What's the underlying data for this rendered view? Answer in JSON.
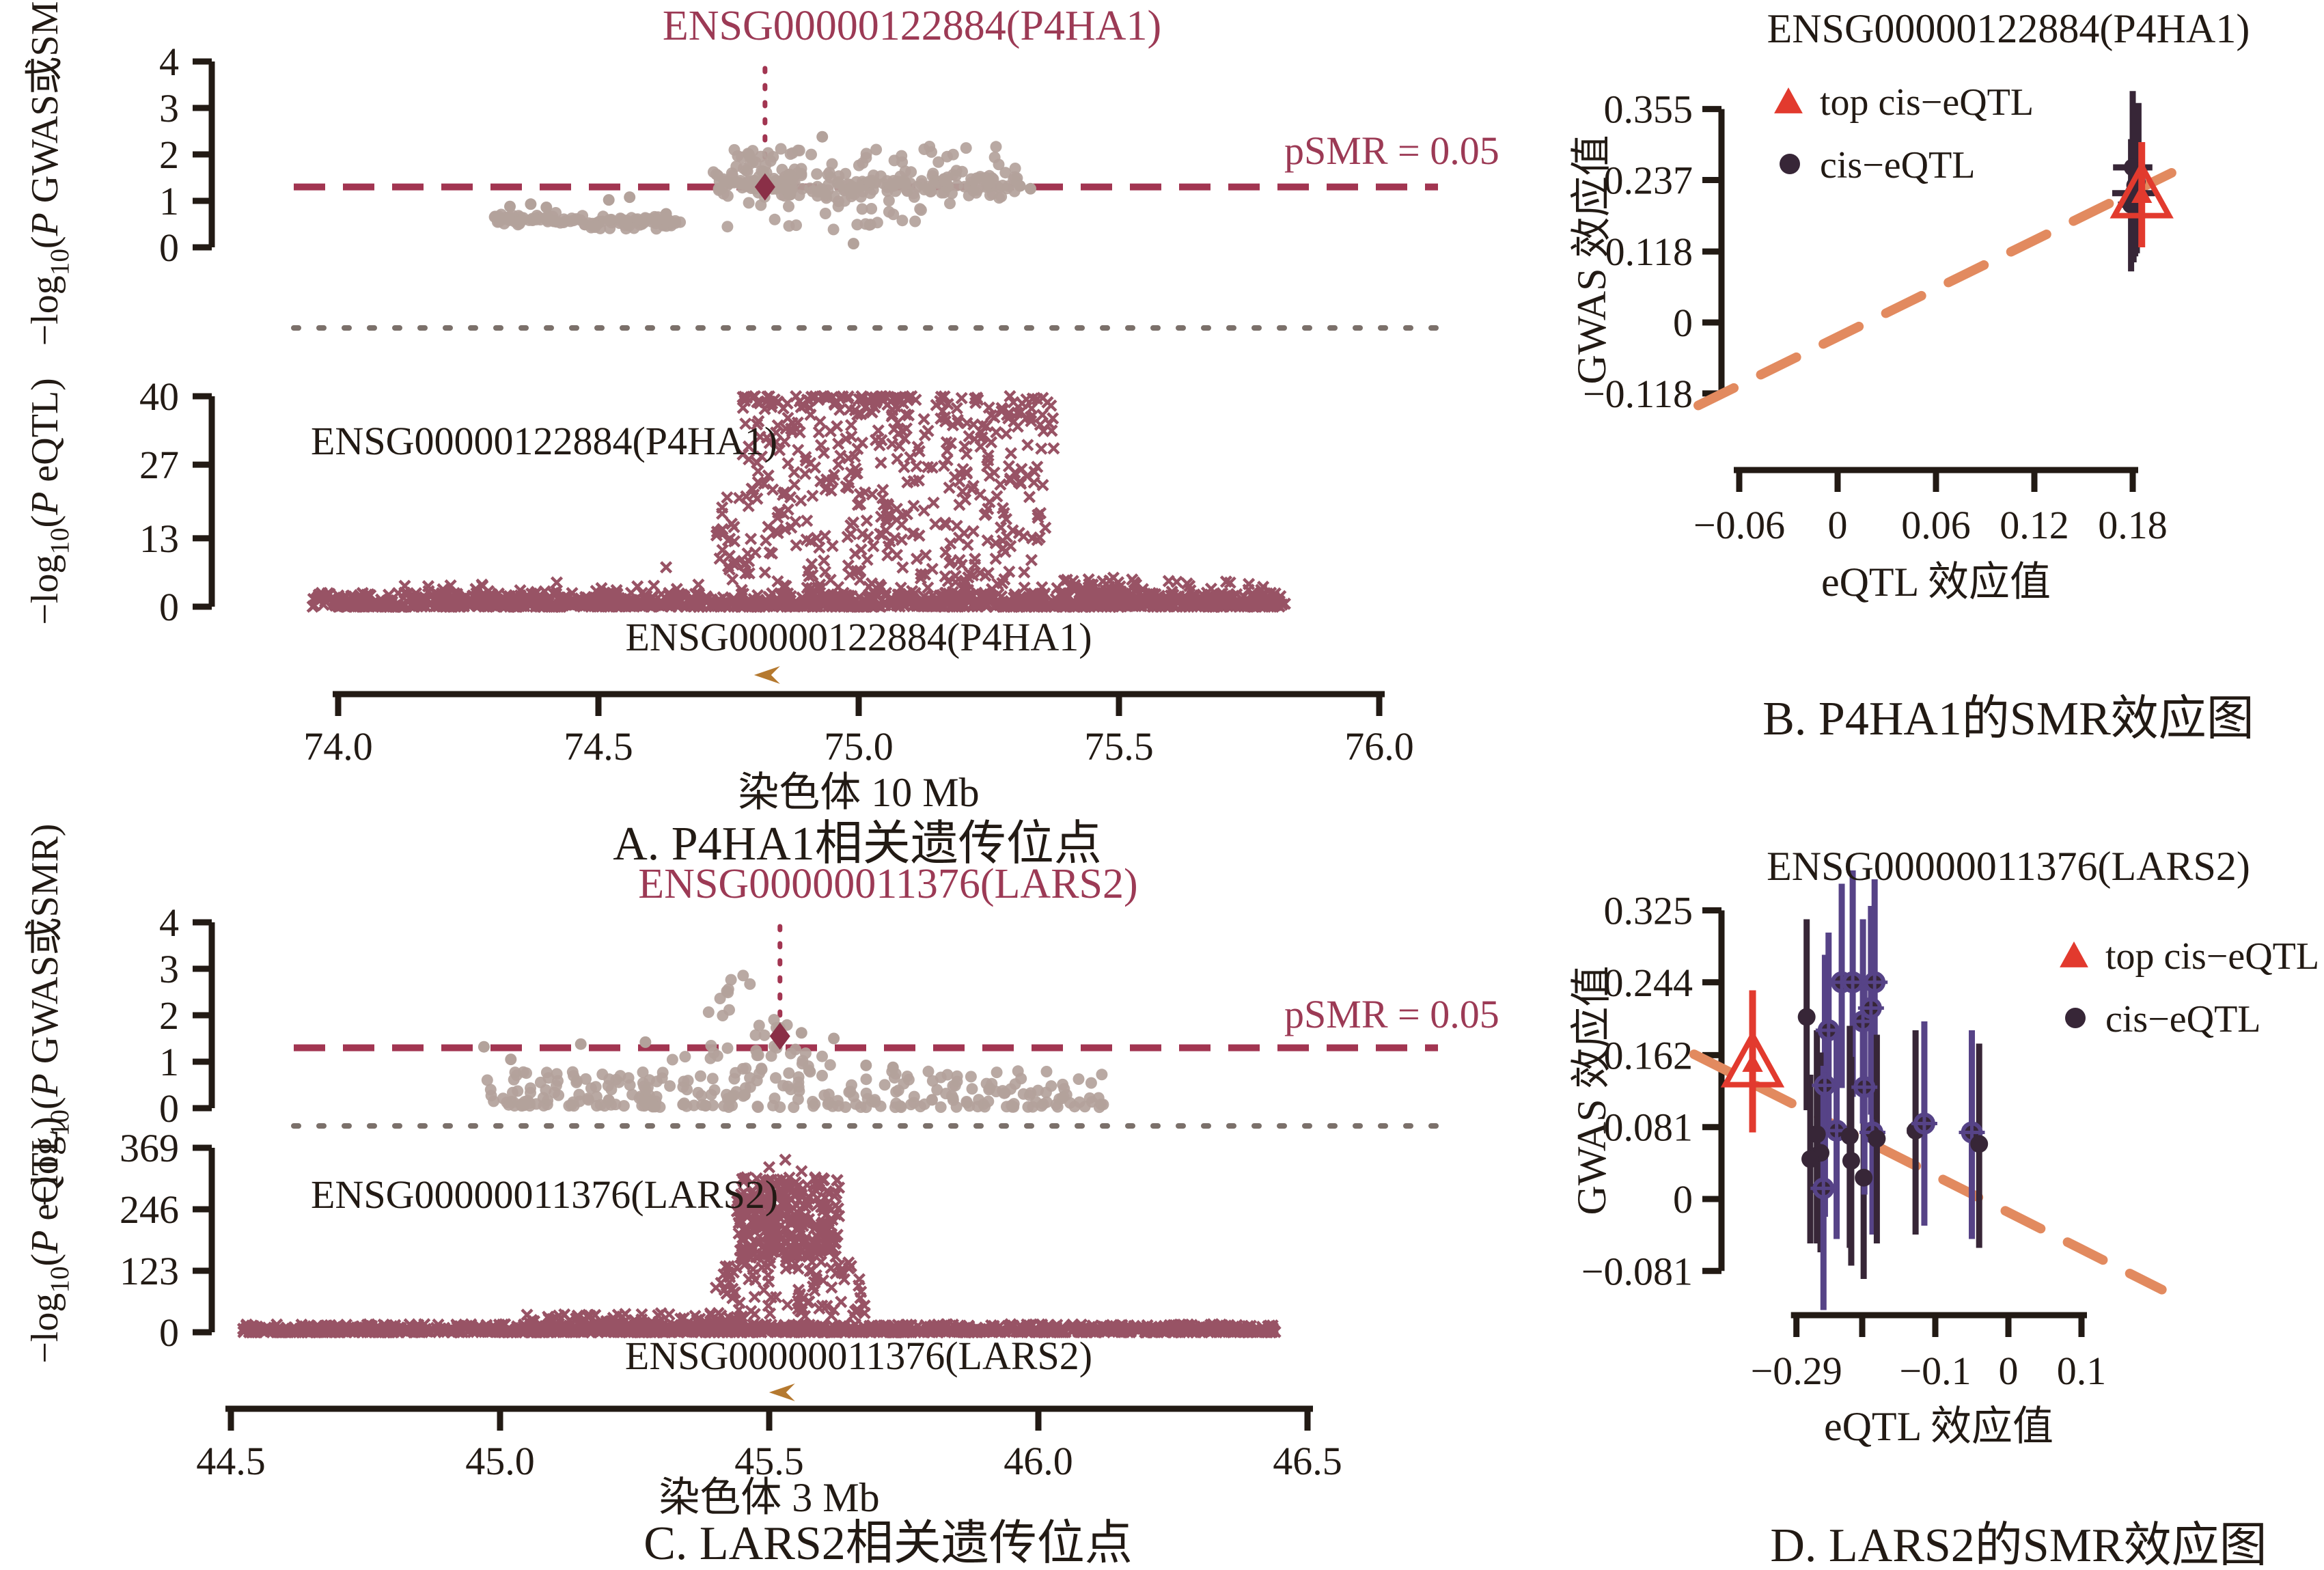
{
  "figure": {
    "background": "#ffffff",
    "colors": {
      "maroon": "#8d4054",
      "maroon_line": "#a23551",
      "maroon_deep": "#8a2f47",
      "maroon_title": "#9c3a55",
      "tan": "#b3a29b",
      "gray_dot": "#7b706a",
      "black": "#221a14",
      "orange": "#e28a5f",
      "red": "#e23a2e",
      "dark_circle": "#372637",
      "purple": "#564387",
      "gold": "#b5792f"
    }
  },
  "chart_data": [
    {
      "id": "A",
      "type": "locus-scatter",
      "gene_title": "ENSG00000122884(P4HA1)",
      "gwas_track": {
        "ylabel_parts": [
          {
            "t": "−log"
          },
          {
            "t": "10",
            "sub": true
          },
          {
            "t": "("
          },
          {
            "t": "P",
            "italic": true
          },
          {
            "t": " GWAS或SMR)"
          }
        ],
        "yticks": [
          4,
          3,
          2,
          1,
          0
        ],
        "ylim": [
          0,
          4
        ],
        "threshold_line": {
          "y": 1.3,
          "label": "pSMR = 0.05"
        },
        "top_snp": {
          "x": 74.82,
          "y": 1.3
        },
        "gene_vline_x": 74.82,
        "clusters": [
          {
            "x": [
              74.3,
              74.47
            ],
            "y": [
              0.45,
              0.76
            ],
            "n": 55,
            "bias": "center"
          },
          {
            "x": [
              74.47,
              74.66
            ],
            "y": [
              0.38,
              0.68
            ],
            "n": 65,
            "bias": "center"
          },
          {
            "x": [
              74.72,
              75.31
            ],
            "y": [
              0.92,
              1.72
            ],
            "n": 215,
            "bias": "center"
          },
          {
            "x": [
              74.76,
              75.28
            ],
            "y": [
              1.7,
              2.18
            ],
            "n": 32
          },
          {
            "x": [
              74.74,
              75.12
            ],
            "y": [
              0.36,
              0.94
            ],
            "n": 22
          },
          {
            "x": [
              74.76,
              74.88
            ],
            "y": [
              1.25,
              2.05
            ],
            "n": 28
          }
        ],
        "points": [
          [
            74.93,
            2.38
          ],
          [
            74.99,
            0.08
          ],
          [
            74.33,
            0.88
          ],
          [
            74.37,
            0.93
          ],
          [
            74.4,
            0.86
          ],
          [
            74.52,
            1.02
          ],
          [
            74.56,
            1.08
          ],
          [
            74.63,
            0.72
          ],
          [
            75.31,
            1.32
          ],
          [
            75.33,
            1.26
          ]
        ]
      },
      "eqtl_track": {
        "ylabel_parts": [
          {
            "t": "−log"
          },
          {
            "t": "10",
            "sub": true
          },
          {
            "t": "("
          },
          {
            "t": "P",
            "italic": true
          },
          {
            "t": " eQTL)"
          }
        ],
        "yticks": [
          40,
          27,
          13,
          0
        ],
        "ylim": [
          0,
          40
        ],
        "gene_label": "ENSG00000122884(P4HA1)",
        "clusters": [
          {
            "x": [
              73.95,
              75.82
            ],
            "y": [
              0,
              2.6
            ],
            "n": 1150,
            "bias": "bottom"
          },
          {
            "x": [
              74.0,
              75.8
            ],
            "y": [
              2.6,
              5
            ],
            "n": 70,
            "bias": "bottom"
          },
          {
            "x": [
              74.72,
              74.79
            ],
            "y": [
              5,
              21
            ],
            "n": 30
          },
          {
            "x": [
              74.77,
              75.38
            ],
            "y": [
              26,
              40
            ],
            "n": 240,
            "bias": "top"
          },
          {
            "x": [
              74.79,
              75.36
            ],
            "y": [
              9,
              26
            ],
            "n": 170
          },
          {
            "x": [
              74.9,
              75.34
            ],
            "y": [
              3.5,
              9
            ],
            "n": 45
          },
          {
            "x": [
              75.38,
              75.55
            ],
            "y": [
              2.5,
              6
            ],
            "n": 40,
            "bias": "bottom"
          }
        ],
        "points": [
          [
            74.63,
            7.5
          ],
          [
            74.82,
            6.5
          ],
          [
            74.98,
            7.8
          ],
          [
            75.12,
            6.2
          ],
          [
            74.42,
            4.6
          ],
          [
            75.28,
            5.2
          ]
        ]
      },
      "gene_row": {
        "label": "ENSG00000122884(P4HA1)",
        "arrow_x": 74.82,
        "arrow_direction": "left"
      },
      "xaxis": {
        "tick_values": [
          74.0,
          74.5,
          75.0,
          75.5,
          76.0
        ],
        "tick_labels": [
          "74.0",
          "74.5",
          "75.0",
          "75.5",
          "76.0"
        ],
        "label": "染色体 10 Mb",
        "xlim": [
          73.9,
          76.1
        ]
      },
      "caption": "A. P4HA1相关遗传位点"
    },
    {
      "id": "B",
      "type": "smr-effect",
      "title": "ENSG00000122884(P4HA1)",
      "ylabel": "GWAS 效应值",
      "xlabel": "eQTL 效应值",
      "yticks": {
        "values": [
          0.355,
          0.237,
          0.118,
          0,
          -0.118
        ],
        "labels": [
          "0.355",
          "0.237",
          "0.118",
          "0",
          "−0.118"
        ]
      },
      "xticks": {
        "values": [
          -0.06,
          0,
          0.06,
          0.12,
          0.18
        ],
        "labels": [
          "−0.06",
          "0",
          "0.06",
          "0.12",
          "0.18"
        ]
      },
      "legend": [
        {
          "label": "top cis−eQTL",
          "marker": "triangle"
        },
        {
          "label": "cis−eQTL",
          "marker": "circle"
        }
      ],
      "fit_line": {
        "x": [
          -0.085,
          0.218
        ],
        "y": [
          -0.138,
          0.268
        ]
      },
      "top_cis_eqtl": {
        "x": 0.1855,
        "y": 0.212,
        "y_err": [
          0.125,
          0.3
        ]
      },
      "cis_eqtl": [
        {
          "x": 0.18,
          "y": 0.258,
          "y_err": [
            0.13,
            0.385
          ],
          "x_err": 0.012,
          "variant": "dark"
        },
        {
          "x": 0.1805,
          "y": 0.215,
          "y_err": [
            0.1,
            0.33
          ],
          "x_err": 0.013,
          "variant": "dark"
        },
        {
          "x": 0.1825,
          "y": 0.235,
          "y_err": [
            0.115,
            0.35
          ],
          "variant": "dark"
        },
        {
          "x": 0.179,
          "y": 0.196,
          "y_err": [
            0.085,
            0.305
          ],
          "x_err": 0.008,
          "variant": "dark"
        },
        {
          "x": 0.1835,
          "y": 0.252,
          "y_err": [
            0.14,
            0.365
          ],
          "variant": "dark"
        },
        {
          "x": 0.1815,
          "y": 0.228,
          "y_err": [
            0.11,
            0.345
          ],
          "variant": "dark"
        }
      ],
      "caption": "B. P4HA1的SMR效应图"
    },
    {
      "id": "C",
      "type": "locus-scatter",
      "gene_title": "ENSG00000011376(LARS2)",
      "gwas_track": {
        "ylabel_parts": [
          {
            "t": "−log"
          },
          {
            "t": "10",
            "sub": true
          },
          {
            "t": "("
          },
          {
            "t": "P",
            "italic": true
          },
          {
            "t": " GWAS或SMR)"
          }
        ],
        "yticks": [
          4,
          3,
          2,
          1,
          0
        ],
        "ylim": [
          0,
          4
        ],
        "threshold_line": {
          "y": 1.3,
          "label": "pSMR = 0.05"
        },
        "top_snp": {
          "x": 45.52,
          "y": 1.55
        },
        "gene_vline_x": 45.52,
        "clusters": [
          {
            "x": [
              44.97,
              45.28
            ],
            "y": [
              0.05,
              0.78
            ],
            "n": 90,
            "bias": "bottom"
          },
          {
            "x": [
              45.28,
              46.13
            ],
            "y": [
              0.02,
              0.8
            ],
            "n": 190,
            "bias": "bottom"
          },
          {
            "x": [
              45.32,
              45.62
            ],
            "y": [
              0.8,
              1.35
            ],
            "n": 26
          },
          {
            "x": [
              45.4,
              45.47
            ],
            "y": [
              2.35,
              2.88
            ],
            "n": 7
          },
          {
            "x": [
              45.36,
              45.44
            ],
            "y": [
              1.95,
              2.2
            ],
            "n": 3
          },
          {
            "x": [
              45.47,
              45.56
            ],
            "y": [
              1.45,
              1.95
            ],
            "n": 8
          }
        ],
        "points": [
          [
            44.97,
            1.32
          ],
          [
            45.15,
            1.38
          ],
          [
            45.27,
            1.42
          ],
          [
            45.02,
            1.05
          ],
          [
            45.56,
            1.62
          ],
          [
            45.62,
            1.5
          ],
          [
            45.68,
            0.92
          ],
          [
            45.73,
            0.88
          ]
        ]
      },
      "eqtl_track": {
        "ylabel_parts": [
          {
            "t": "−log"
          },
          {
            "t": "10",
            "sub": true
          },
          {
            "t": "("
          },
          {
            "t": "P",
            "italic": true
          },
          {
            "t": " eQTL)"
          }
        ],
        "yticks": [
          369,
          246,
          123,
          0
        ],
        "ylim": [
          0,
          369
        ],
        "gene_label": "ENSG00000011376(LARS2)",
        "clusters": [
          {
            "x": [
              44.52,
              46.44
            ],
            "y": [
              0,
              16
            ],
            "n": 1250,
            "bias": "bottom"
          },
          {
            "x": [
              45.05,
              45.45
            ],
            "y": [
              10,
              38
            ],
            "n": 120,
            "bias": "bottom"
          },
          {
            "x": [
              45.44,
              45.63
            ],
            "y": [
              140,
              310
            ],
            "n": 330
          },
          {
            "x": [
              45.4,
              45.68
            ],
            "y": [
              30,
              140
            ],
            "n": 90
          }
        ],
        "points": [
          [
            45.5,
            330
          ],
          [
            45.53,
            345
          ],
          [
            45.56,
            322
          ]
        ]
      },
      "gene_row": {
        "label": "ENSG00000011376(LARS2)",
        "arrow_x": 45.52,
        "arrow_direction": "left"
      },
      "xaxis": {
        "tick_values": [
          44.5,
          45.0,
          45.5,
          46.0,
          46.5
        ],
        "tick_labels": [
          "44.5",
          "45.0",
          "45.5",
          "46.0",
          "46.5"
        ],
        "label": "染色体 3 Mb",
        "xlim": [
          44.4,
          46.6
        ]
      },
      "caption": "C. LARS2相关遗传位点"
    },
    {
      "id": "D",
      "type": "smr-effect",
      "title": "ENSG00000011376(LARS2)",
      "ylabel": "GWAS 效应值",
      "xlabel": "eQTL 效应值",
      "yticks": {
        "values": [
          0.325,
          0.244,
          0.162,
          0.081,
          0,
          -0.081
        ],
        "labels": [
          "0.325",
          "0.244",
          "0.162",
          "0.081",
          "0",
          "−0.081"
        ]
      },
      "xticks": {
        "values": [
          -0.29,
          -0.2,
          -0.1,
          0,
          0.1
        ],
        "labels": [
          "−0.29",
          "",
          "−0.1",
          "0",
          "0.1"
        ]
      },
      "legend": [
        {
          "label": "top cis−eQTL",
          "marker": "triangle"
        },
        {
          "label": "cis−eQTL",
          "marker": "circle"
        }
      ],
      "fit_line": {
        "x": [
          -0.43,
          0.21
        ],
        "y": [
          0.163,
          -0.102
        ]
      },
      "top_cis_eqtl": {
        "x": -0.35,
        "y": 0.152,
        "y_err": [
          0.075,
          0.235
        ]
      },
      "cis_eqtl": [
        {
          "x": -0.276,
          "y": 0.205,
          "y_err": [
            0.1,
            0.315
          ],
          "variant": "dark"
        },
        {
          "x": -0.246,
          "y": 0.19,
          "y_err": [
            0.075,
            0.3
          ],
          "variant": "purple"
        },
        {
          "x": -0.228,
          "y": 0.244,
          "y_err": [
            0.125,
            0.355
          ],
          "x_err": 0.012,
          "variant": "purple"
        },
        {
          "x": -0.213,
          "y": 0.244,
          "y_err": [
            0.115,
            0.37
          ],
          "x_err": 0.012,
          "variant": "purple"
        },
        {
          "x": -0.251,
          "y": 0.128,
          "y_err": [
            -0.02,
            0.275
          ],
          "variant": "purple"
        },
        {
          "x": -0.257,
          "y": 0.052,
          "y_err": [
            -0.06,
            0.165
          ],
          "variant": "dark"
        },
        {
          "x": -0.271,
          "y": 0.045,
          "y_err": [
            -0.05,
            0.14
          ],
          "x_err": 0.01,
          "variant": "dark"
        },
        {
          "x": -0.253,
          "y": 0.012,
          "y_err": [
            -0.125,
            0.15
          ],
          "x_err": 0.012,
          "variant": "purple"
        },
        {
          "x": -0.235,
          "y": 0.077,
          "y_err": [
            -0.045,
            0.19
          ],
          "x_err": 0.014,
          "variant": "purple"
        },
        {
          "x": -0.262,
          "y": 0.073,
          "y_err": [
            -0.05,
            0.19
          ],
          "variant": "dark"
        },
        {
          "x": -0.198,
          "y": 0.024,
          "y_err": [
            -0.09,
            0.135
          ],
          "variant": "dark"
        },
        {
          "x": -0.217,
          "y": 0.071,
          "y_err": [
            -0.055,
            0.195
          ],
          "variant": "dark"
        },
        {
          "x": -0.215,
          "y": 0.043,
          "y_err": [
            -0.075,
            0.16
          ],
          "variant": "dark"
        },
        {
          "x": -0.199,
          "y": 0.2,
          "y_err": [
            0.085,
            0.315
          ],
          "variant": "purple"
        },
        {
          "x": -0.197,
          "y": 0.126,
          "y_err": [
            0.005,
            0.245
          ],
          "variant": "purple"
        },
        {
          "x": -0.183,
          "y": 0.244,
          "y_err": [
            0.13,
            0.36
          ],
          "x_err": 0.012,
          "variant": "purple"
        },
        {
          "x": -0.188,
          "y": 0.215,
          "y_err": [
            0.095,
            0.33
          ],
          "variant": "purple"
        },
        {
          "x": -0.186,
          "y": 0.075,
          "y_err": [
            -0.04,
            0.19
          ],
          "x_err": 0.012,
          "variant": "purple"
        },
        {
          "x": -0.18,
          "y": 0.068,
          "y_err": [
            -0.05,
            0.185
          ],
          "variant": "dark"
        },
        {
          "x": -0.127,
          "y": 0.077,
          "y_err": [
            -0.04,
            0.19
          ],
          "x_err": 0.012,
          "variant": "dark"
        },
        {
          "x": -0.115,
          "y": 0.085,
          "y_err": [
            -0.03,
            0.2
          ],
          "x_err": 0.012,
          "variant": "purple"
        },
        {
          "x": -0.05,
          "y": 0.075,
          "y_err": [
            -0.045,
            0.19
          ],
          "x_err": 0.012,
          "variant": "purple"
        },
        {
          "x": -0.04,
          "y": 0.062,
          "y_err": [
            -0.055,
            0.175
          ],
          "variant": "dark"
        }
      ],
      "caption": "D. LARS2的SMR效应图"
    }
  ]
}
